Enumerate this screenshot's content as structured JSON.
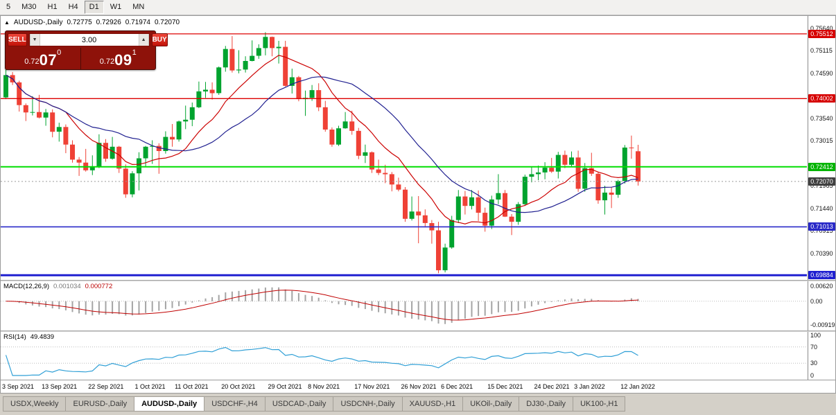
{
  "icons": {
    "collapse_triangle": "▲",
    "spin_down": "▼",
    "spin_up": "▲"
  },
  "colors": {
    "bull": "#00a32e",
    "bear": "#ef4136",
    "ma_fast": "#cc0000",
    "ma_slow": "#202090",
    "macd_hist": "#a4a4a4",
    "macd_signal": "#c00000",
    "rsi_line": "#2f9fd6",
    "level_dotted": "#bcbcbc",
    "bid_dashed": "#9a9a9a"
  },
  "toolbar": {
    "timeframes": [
      "5",
      "M30",
      "H1",
      "H4",
      "D1",
      "W1",
      "MN"
    ],
    "active": "D1"
  },
  "chart": {
    "title": {
      "symbol_period": "AUDUSD-,Daily",
      "open": "0.72775",
      "high": "0.72926",
      "low": "0.71974",
      "close": "0.72070"
    },
    "trade_panel": {
      "sell_label": "SELL",
      "buy_label": "BUY",
      "volume": "3.00",
      "sell_price": {
        "base": "0.72",
        "big": "07",
        "sup": "0"
      },
      "buy_price": {
        "base": "0.72",
        "big": "09",
        "sup": "1"
      }
    }
  },
  "macd": {
    "label": "MACD(12,26,9)",
    "value_main": "0.001034",
    "value_signal": "0.000772",
    "axis": [
      "0.00620",
      "0.00",
      "-0.00919"
    ],
    "ylim": [
      -0.00919,
      0.0062
    ],
    "params": {
      "fast": 12,
      "slow": 26,
      "signal": 9
    }
  },
  "rsi": {
    "label": "RSI(14)",
    "value": "49.4839",
    "axis": [
      100,
      70,
      30,
      0
    ],
    "levels": [
      70,
      30
    ],
    "period": 14
  },
  "tabs": {
    "active_index": 2,
    "items": [
      "USDX,Weekly",
      "EURUSD-,Daily",
      "AUDUSD-,Daily",
      "USDCHF-,H4",
      "USDCAD-,Daily",
      "USDCNH-,Daily",
      "XAUUSD-,H1",
      "UKOil-,Daily",
      "DJ30-,Daily",
      "UK100-,H1"
    ]
  },
  "chart_data": {
    "type": "candlestick",
    "symbol": "AUDUSD-",
    "timeframe": "Daily",
    "current_bar": {
      "open": 0.72775,
      "high": 0.72926,
      "low": 0.71974,
      "close": 0.7207
    },
    "bid_price": 0.7207,
    "ask_price": 0.72091,
    "ylim": [
      0.69775,
      0.7593
    ],
    "y_ticks": [
      0.7564,
      0.75115,
      0.7459,
      0.7354,
      0.73015,
      0.71965,
      0.7144,
      0.70915,
      0.7039
    ],
    "y_badges": [
      {
        "value": 0.75512,
        "color": "#d60000"
      },
      {
        "value": 0.74002,
        "color": "#d60000"
      },
      {
        "value": 0.72412,
        "color": "#00b400"
      },
      {
        "value": 0.7207,
        "color": "#404040"
      },
      {
        "value": 0.71013,
        "color": "#2929c8"
      },
      {
        "value": 0.69884,
        "color": "#1f1fd0"
      }
    ],
    "hlines": [
      {
        "price": 0.75512,
        "color": "#dd0000",
        "width": 1.3
      },
      {
        "price": 0.74002,
        "color": "#dd0000",
        "width": 1.3
      },
      {
        "price": 0.72412,
        "color": "#00dd00",
        "width": 2
      },
      {
        "price": 0.71013,
        "color": "#2929c8",
        "width": 1.6
      },
      {
        "price": 0.69884,
        "color": "#1f1fd0",
        "width": 3
      }
    ],
    "moving_averages": [
      {
        "period": 10,
        "color": "#cc0000"
      },
      {
        "period": 21,
        "color": "#202090"
      }
    ],
    "x_labels": [
      {
        "i": 0,
        "t": "3 Sep 2021"
      },
      {
        "i": 6,
        "t": "13 Sep 2021"
      },
      {
        "i": 13,
        "t": "22 Sep 2021"
      },
      {
        "i": 20,
        "t": "1 Oct 2021"
      },
      {
        "i": 26,
        "t": "11 Oct 2021"
      },
      {
        "i": 33,
        "t": "20 Oct 2021"
      },
      {
        "i": 40,
        "t": "29 Oct 2021"
      },
      {
        "i": 46,
        "t": "8 Nov 2021"
      },
      {
        "i": 53,
        "t": "17 Nov 2021"
      },
      {
        "i": 60,
        "t": "26 Nov 2021"
      },
      {
        "i": 66,
        "t": "6 Dec 2021"
      },
      {
        "i": 73,
        "t": "15 Dec 2021"
      },
      {
        "i": 80,
        "t": "24 Dec 2021"
      },
      {
        "i": 86,
        "t": "3 Jan 2022"
      },
      {
        "i": 93,
        "t": "12 Jan 2022"
      }
    ],
    "ohlc": [
      [
        0.7403,
        0.7477,
        0.7399,
        0.7455
      ],
      [
        0.7455,
        0.7462,
        0.7432,
        0.7438
      ],
      [
        0.7438,
        0.7442,
        0.737,
        0.7385
      ],
      [
        0.7385,
        0.7389,
        0.7348,
        0.7368
      ],
      [
        0.7368,
        0.7406,
        0.7361,
        0.7369
      ],
      [
        0.7369,
        0.7409,
        0.7354,
        0.7356
      ],
      [
        0.7356,
        0.7376,
        0.7337,
        0.7368
      ],
      [
        0.7368,
        0.7375,
        0.731,
        0.7323
      ],
      [
        0.7323,
        0.7344,
        0.73,
        0.7334
      ],
      [
        0.7334,
        0.734,
        0.7273,
        0.7293
      ],
      [
        0.7293,
        0.7303,
        0.7251,
        0.7258
      ],
      [
        0.7258,
        0.7264,
        0.722,
        0.7251
      ],
      [
        0.7251,
        0.7283,
        0.723,
        0.7233
      ],
      [
        0.7233,
        0.7268,
        0.7222,
        0.724
      ],
      [
        0.724,
        0.7317,
        0.7238,
        0.7297
      ],
      [
        0.7297,
        0.7306,
        0.7253,
        0.726
      ],
      [
        0.726,
        0.7311,
        0.7258,
        0.7288
      ],
      [
        0.7288,
        0.729,
        0.7227,
        0.7237
      ],
      [
        0.7237,
        0.7247,
        0.7169,
        0.7177
      ],
      [
        0.7177,
        0.7231,
        0.717,
        0.7226
      ],
      [
        0.7226,
        0.7275,
        0.7186,
        0.7261
      ],
      [
        0.7261,
        0.729,
        0.7241,
        0.7288
      ],
      [
        0.7288,
        0.7303,
        0.7248,
        0.729
      ],
      [
        0.729,
        0.7296,
        0.7225,
        0.7278
      ],
      [
        0.7278,
        0.7324,
        0.7272,
        0.7311
      ],
      [
        0.7311,
        0.7341,
        0.7288,
        0.7305
      ],
      [
        0.7305,
        0.7349,
        0.73,
        0.7347
      ],
      [
        0.7347,
        0.7384,
        0.7329,
        0.7351
      ],
      [
        0.7351,
        0.7391,
        0.7336,
        0.738
      ],
      [
        0.738,
        0.744,
        0.7378,
        0.7417
      ],
      [
        0.7417,
        0.7439,
        0.7402,
        0.7421
      ],
      [
        0.7421,
        0.7438,
        0.7398,
        0.7413
      ],
      [
        0.7413,
        0.7475,
        0.7409,
        0.7473
      ],
      [
        0.7473,
        0.7523,
        0.7463,
        0.7516
      ],
      [
        0.7516,
        0.7546,
        0.7461,
        0.7466
      ],
      [
        0.7466,
        0.7513,
        0.7459,
        0.7468
      ],
      [
        0.7468,
        0.7499,
        0.7461,
        0.7488
      ],
      [
        0.7488,
        0.7536,
        0.7487,
        0.75
      ],
      [
        0.75,
        0.7527,
        0.7493,
        0.7518
      ],
      [
        0.7518,
        0.7555,
        0.7501,
        0.7544
      ],
      [
        0.7544,
        0.7545,
        0.7499,
        0.7518
      ],
      [
        0.7518,
        0.7535,
        0.7482,
        0.7521
      ],
      [
        0.7521,
        0.7535,
        0.7428,
        0.743
      ],
      [
        0.743,
        0.747,
        0.7412,
        0.745
      ],
      [
        0.745,
        0.7453,
        0.7394,
        0.7399
      ],
      [
        0.7399,
        0.7419,
        0.736,
        0.7402
      ],
      [
        0.7402,
        0.7432,
        0.7395,
        0.742
      ],
      [
        0.742,
        0.7436,
        0.7371,
        0.738
      ],
      [
        0.738,
        0.7395,
        0.7323,
        0.7328
      ],
      [
        0.7328,
        0.7333,
        0.7288,
        0.7293
      ],
      [
        0.7293,
        0.7337,
        0.729,
        0.7331
      ],
      [
        0.7331,
        0.7369,
        0.733,
        0.7347
      ],
      [
        0.7347,
        0.7372,
        0.7316,
        0.7325
      ],
      [
        0.7325,
        0.7332,
        0.7259,
        0.7267
      ],
      [
        0.7267,
        0.7293,
        0.725,
        0.7275
      ],
      [
        0.7275,
        0.7277,
        0.7227,
        0.7235
      ],
      [
        0.7235,
        0.7258,
        0.7222,
        0.7227
      ],
      [
        0.7227,
        0.7246,
        0.7203,
        0.7224
      ],
      [
        0.7224,
        0.7229,
        0.7184,
        0.72
      ],
      [
        0.72,
        0.7216,
        0.7184,
        0.7188
      ],
      [
        0.7188,
        0.7194,
        0.7113,
        0.712
      ],
      [
        0.712,
        0.7172,
        0.7116,
        0.7137
      ],
      [
        0.7137,
        0.7173,
        0.7063,
        0.7128
      ],
      [
        0.7128,
        0.7142,
        0.71,
        0.711
      ],
      [
        0.711,
        0.7117,
        0.7062,
        0.7093
      ],
      [
        0.7093,
        0.7113,
        0.6993,
        0.7
      ],
      [
        0.7,
        0.7062,
        0.6995,
        0.7053
      ],
      [
        0.7053,
        0.7127,
        0.705,
        0.7117
      ],
      [
        0.7117,
        0.7187,
        0.711,
        0.7172
      ],
      [
        0.7172,
        0.7185,
        0.713,
        0.715
      ],
      [
        0.715,
        0.7187,
        0.7142,
        0.717
      ],
      [
        0.717,
        0.7186,
        0.7115,
        0.7134
      ],
      [
        0.7134,
        0.7146,
        0.709,
        0.7104
      ],
      [
        0.7104,
        0.7174,
        0.7096,
        0.7165
      ],
      [
        0.7165,
        0.7224,
        0.7154,
        0.718
      ],
      [
        0.718,
        0.7187,
        0.7124,
        0.7125
      ],
      [
        0.7125,
        0.7131,
        0.7082,
        0.7113
      ],
      [
        0.7113,
        0.7159,
        0.7106,
        0.7154
      ],
      [
        0.7154,
        0.7223,
        0.715,
        0.7218
      ],
      [
        0.7218,
        0.7242,
        0.7205,
        0.7224
      ],
      [
        0.7224,
        0.7244,
        0.721,
        0.7228
      ],
      [
        0.7228,
        0.7252,
        0.7212,
        0.7239
      ],
      [
        0.7239,
        0.7262,
        0.7227,
        0.723
      ],
      [
        0.723,
        0.7276,
        0.7214,
        0.7269
      ],
      [
        0.7269,
        0.7279,
        0.7238,
        0.7246
      ],
      [
        0.7246,
        0.7277,
        0.7242,
        0.7263
      ],
      [
        0.7263,
        0.7279,
        0.7183,
        0.719
      ],
      [
        0.719,
        0.725,
        0.7183,
        0.7238
      ],
      [
        0.7238,
        0.7274,
        0.722,
        0.7225
      ],
      [
        0.7225,
        0.7228,
        0.7155,
        0.7163
      ],
      [
        0.7163,
        0.7197,
        0.713,
        0.7181
      ],
      [
        0.7181,
        0.7194,
        0.7145,
        0.7176
      ],
      [
        0.7176,
        0.7211,
        0.7169,
        0.7208
      ],
      [
        0.7208,
        0.7292,
        0.7202,
        0.7286
      ],
      [
        0.7286,
        0.7314,
        0.726,
        0.7285
      ],
      [
        0.72775,
        0.72926,
        0.71974,
        0.7207
      ]
    ]
  }
}
